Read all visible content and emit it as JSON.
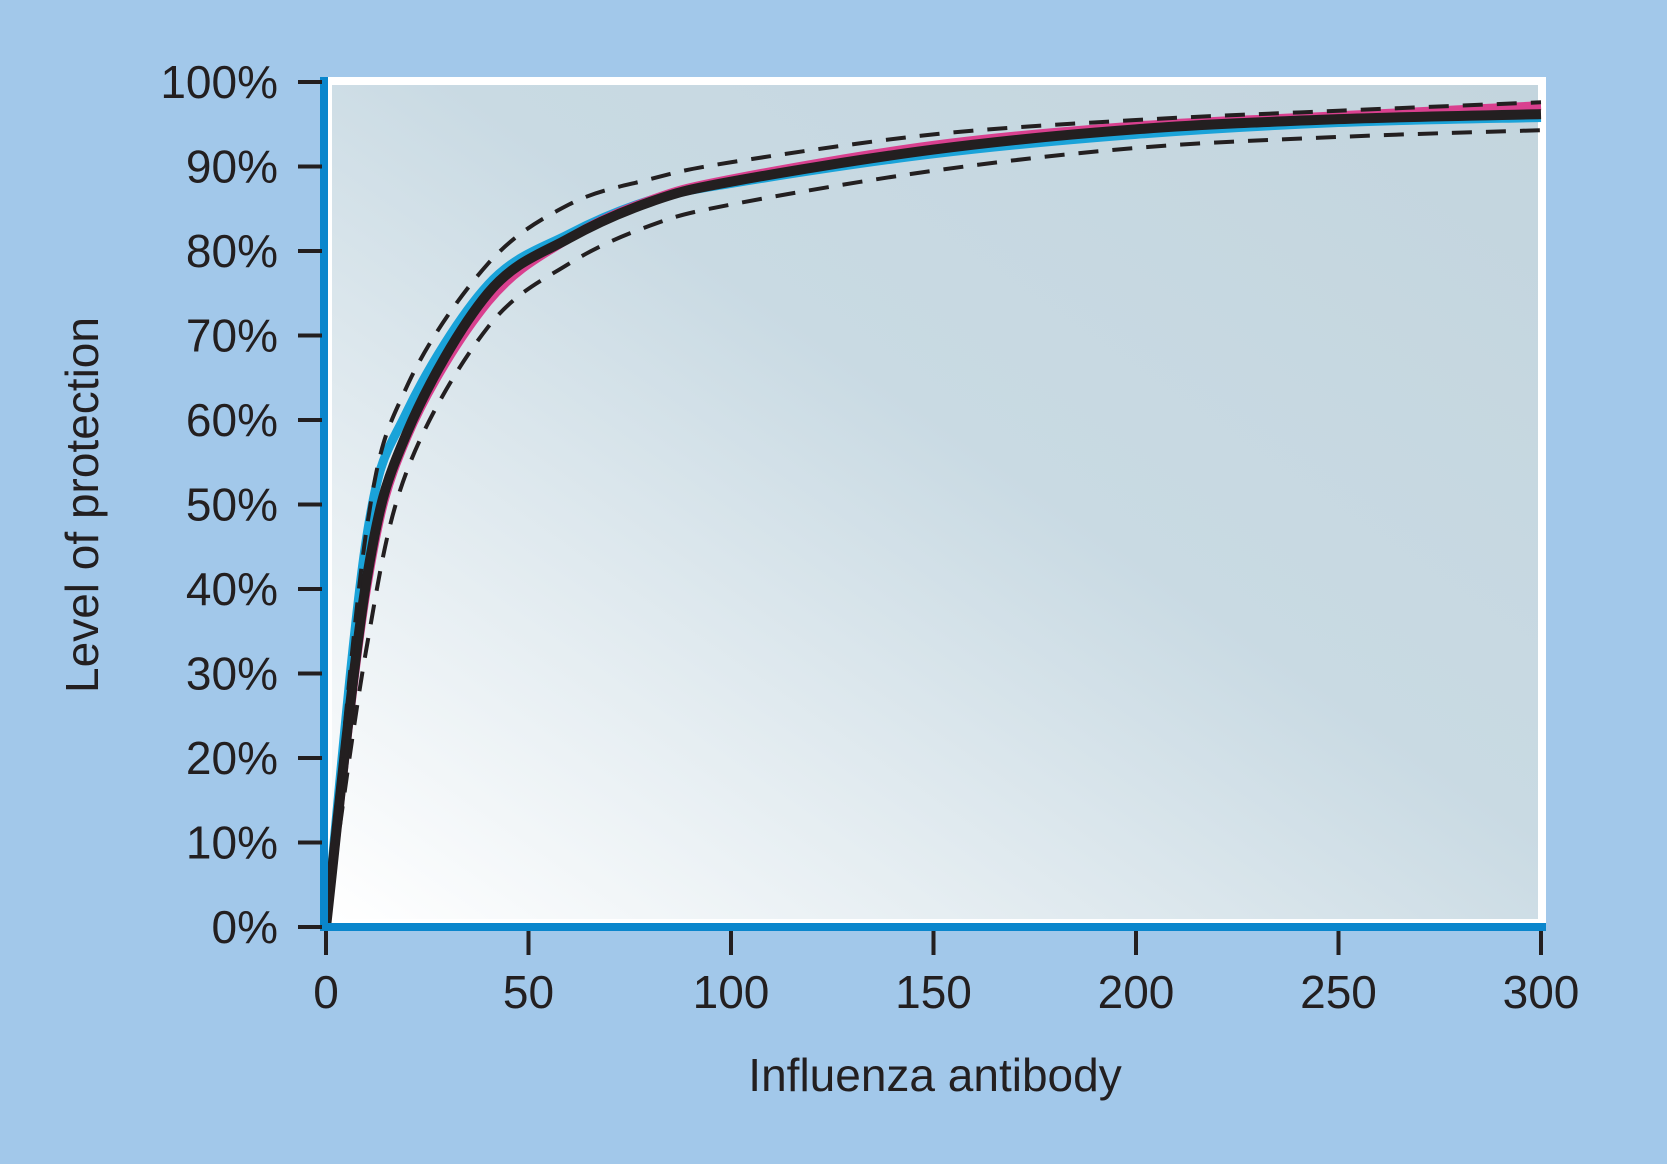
{
  "chart_data": {
    "type": "line",
    "title": "",
    "xlabel": "Influenza antibody",
    "ylabel": "Level of protection",
    "xlim": [
      0,
      300
    ],
    "ylim": [
      0,
      100
    ],
    "x_ticks": [
      "0",
      "50",
      "100",
      "150",
      "200",
      "250",
      "300"
    ],
    "y_ticks": [
      "0%",
      "10%",
      "20%",
      "30%",
      "40%",
      "50%",
      "60%",
      "70%",
      "80%",
      "90%",
      "100%"
    ],
    "grid": false,
    "legend": null,
    "x": [
      0,
      10,
      20,
      40,
      60,
      80,
      100,
      150,
      200,
      250,
      300
    ],
    "series": [
      {
        "name": "Cyan model curve",
        "color": "#1aa3d9",
        "style": "solid",
        "values": [
          0,
          46,
          61,
          76,
          82,
          86,
          88,
          91.5,
          93.8,
          95.2,
          95.8
        ]
      },
      {
        "name": "Magenta model curve",
        "color": "#d9408f",
        "style": "solid",
        "values": [
          0,
          40,
          58,
          74,
          81.5,
          86,
          88.5,
          92.5,
          94.8,
          96,
          97.2
        ]
      },
      {
        "name": "Black fitted curve",
        "color": "#231f20",
        "style": "solid",
        "values": [
          0,
          41,
          58.5,
          75,
          81.5,
          85.8,
          88.2,
          92,
          94.4,
          95.6,
          96.2
        ]
      },
      {
        "name": "Upper confidence bound",
        "color": "#231f20",
        "style": "dashed",
        "values": [
          0,
          47,
          64,
          78.5,
          85.5,
          88.5,
          90.5,
          93.8,
          95.5,
          96.6,
          97.6
        ]
      },
      {
        "name": "Lower confidence bound",
        "color": "#231f20",
        "style": "dashed",
        "values": [
          0,
          33,
          54,
          71,
          78.5,
          83,
          85.5,
          89.5,
          92.2,
          93.5,
          94.3
        ]
      }
    ]
  }
}
